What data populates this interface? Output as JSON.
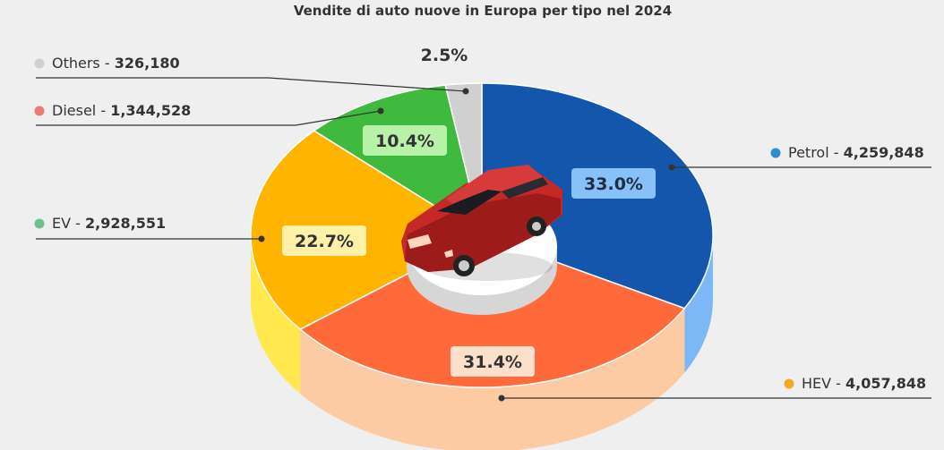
{
  "chart_data": {
    "type": "pie",
    "title": "Vendite di auto nuove in Europa per tipo nel 2024",
    "slices": [
      {
        "name": "Petrol",
        "value": 4259848,
        "percent_label": "33.0%",
        "color": "#1456ac",
        "side_color": "#7bb8f5",
        "legend_dot": "#2e8fd0",
        "label_bg": "#87c1f7",
        "label_fg": "#1f2d44"
      },
      {
        "name": "HEV",
        "value": 4057848,
        "percent_label": "31.4%",
        "color": "#ff6a3b",
        "side_color": "#fccaa3",
        "legend_dot": "#f5a623",
        "label_bg": "#fde0cc",
        "label_fg": "#333333"
      },
      {
        "name": "EV",
        "value": 2928551,
        "percent_label": "22.7%",
        "color": "#ffb400",
        "side_color": "#ffe94f",
        "legend_dot": "#6cc18f",
        "label_bg": "#fff2a8",
        "label_fg": "#333333"
      },
      {
        "name": "Diesel",
        "value": 1344528,
        "percent_label": "10.4%",
        "color": "#3fba3f",
        "side_color": "#1f8a2a",
        "legend_dot": "#f07a6e",
        "label_bg": "#b8f2a8",
        "label_fg": "#333333"
      },
      {
        "name": "Others",
        "value": 326180,
        "percent_label": "2.5%",
        "color": "#d0d0d0",
        "side_color": "#b5b5b5",
        "legend_dot": "#cfcfcf",
        "label_bg": "#eeeeee",
        "label_fg": "#333333"
      }
    ],
    "legend": [
      {
        "series": "Others",
        "text": "Others - ",
        "value_text": "326,180"
      },
      {
        "series": "Diesel",
        "text": "Diesel - ",
        "value_text": "1,344,528"
      },
      {
        "series": "EV",
        "text": "EV - ",
        "value_text": "2,928,551"
      },
      {
        "series": "Petrol",
        "text": "Petrol - ",
        "value_text": "4,259,848"
      },
      {
        "series": "HEV",
        "text": "HEV - ",
        "value_text": "4,057,848"
      }
    ]
  },
  "center_image": "red-sedan-car"
}
